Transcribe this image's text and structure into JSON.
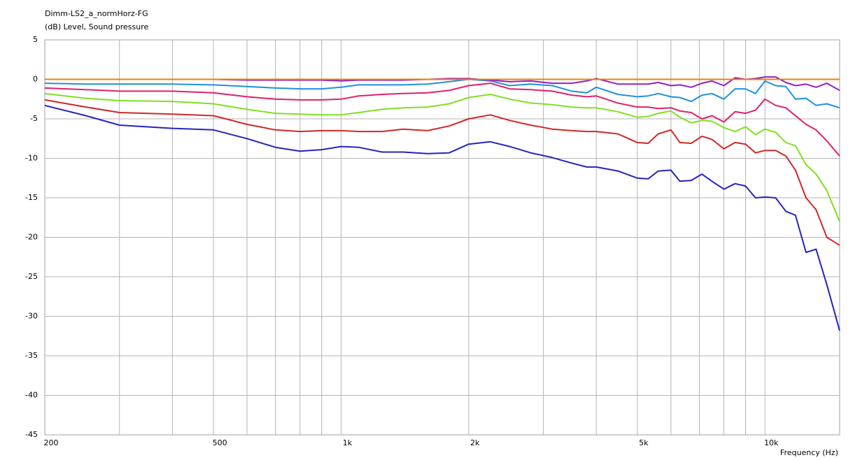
{
  "chart_data": {
    "type": "line",
    "log_x": true,
    "grid": true,
    "title": "Dimm-LS2_a_normHorz-FG",
    "subtitle": "(dB)  Level, Sound pressure",
    "x_label": "Frequency  (Hz)",
    "xlim": [
      200,
      15000
    ],
    "ylim": [
      -45,
      5
    ],
    "xticks": [
      200,
      500,
      {
        "value": 1000,
        "label": "1k"
      },
      {
        "value": 2000,
        "label": "2k"
      },
      {
        "value": 5000,
        "label": "5k"
      },
      {
        "value": 10000,
        "label": "10k"
      }
    ],
    "xminor_ticks": [
      300,
      400,
      600,
      700,
      800,
      900,
      3000,
      4000,
      6000,
      7000,
      8000,
      9000
    ],
    "yticks": [
      5,
      0,
      -5,
      -10,
      -15,
      -20,
      -25,
      -30,
      -35,
      -40,
      -45
    ],
    "x": [
      200,
      250,
      300,
      400,
      500,
      600,
      700,
      800,
      900,
      1000,
      1100,
      1250,
      1400,
      1600,
      1800,
      2000,
      2250,
      2500,
      2800,
      3150,
      3500,
      3800,
      4000,
      4500,
      5000,
      5300,
      5600,
      6000,
      6300,
      6700,
      7100,
      7500,
      8000,
      8500,
      9000,
      9500,
      10000,
      10600,
      11200,
      11800,
      12500,
      13200,
      14000,
      15000
    ],
    "series": [
      {
        "color": "#2424c0",
        "values": [
          -3.3,
          -4.6,
          -5.8,
          -6.2,
          -6.4,
          -7.5,
          -8.6,
          -9.1,
          -8.9,
          -8.5,
          -8.6,
          -9.2,
          -9.2,
          -9.4,
          -9.3,
          -8.2,
          -7.9,
          -8.5,
          -9.3,
          -9.9,
          -10.6,
          -11.1,
          -11.1,
          -11.6,
          -12.5,
          -12.6,
          -11.6,
          -11.5,
          -12.9,
          -12.8,
          -12.0,
          -12.9,
          -13.9,
          -13.2,
          -13.5,
          -15.0,
          -14.9,
          -15.0,
          -16.7,
          -17.2,
          -21.9,
          -21.5,
          -26.0,
          -31.8
        ]
      },
      {
        "color": "#d02828",
        "values": [
          -2.6,
          -3.5,
          -4.2,
          -4.4,
          -4.6,
          -5.7,
          -6.4,
          -6.6,
          -6.5,
          -6.5,
          -6.6,
          -6.6,
          -6.3,
          -6.5,
          -5.9,
          -5.0,
          -4.5,
          -5.2,
          -5.8,
          -6.3,
          -6.5,
          -6.6,
          -6.6,
          -6.9,
          -8.0,
          -8.1,
          -6.9,
          -6.4,
          -8.0,
          -8.1,
          -7.2,
          -7.6,
          -8.8,
          -8.0,
          -8.2,
          -9.3,
          -9.0,
          -9.0,
          -9.7,
          -11.5,
          -15.0,
          -16.5,
          -20.0,
          -21.0
        ]
      },
      {
        "color": "#80e020",
        "values": [
          -1.8,
          -2.4,
          -2.7,
          -2.8,
          -3.1,
          -3.8,
          -4.3,
          -4.4,
          -4.5,
          -4.5,
          -4.2,
          -3.8,
          -3.6,
          -3.5,
          -3.1,
          -2.3,
          -1.9,
          -2.5,
          -3.0,
          -3.2,
          -3.5,
          -3.6,
          -3.6,
          -4.1,
          -4.8,
          -4.7,
          -4.3,
          -4.0,
          -4.8,
          -5.5,
          -5.2,
          -5.3,
          -6.1,
          -6.6,
          -6.0,
          -7.0,
          -6.3,
          -6.7,
          -8.0,
          -8.4,
          -10.8,
          -12.0,
          -14.1,
          -18.0
        ]
      },
      {
        "color": "#e0206a",
        "values": [
          -1.1,
          -1.3,
          -1.5,
          -1.5,
          -1.7,
          -2.2,
          -2.5,
          -2.6,
          -2.6,
          -2.5,
          -2.1,
          -1.9,
          -1.8,
          -1.7,
          -1.4,
          -0.8,
          -0.5,
          -1.2,
          -1.3,
          -1.5,
          -2.0,
          -2.2,
          -2.1,
          -3.0,
          -3.5,
          -3.5,
          -3.7,
          -3.6,
          -4.0,
          -4.2,
          -5.0,
          -4.6,
          -5.4,
          -4.1,
          -4.3,
          -3.9,
          -2.5,
          -3.3,
          -3.6,
          -4.6,
          -5.7,
          -6.4,
          -7.8,
          -9.7
        ]
      },
      {
        "color": "#2090e0",
        "values": [
          -0.5,
          -0.6,
          -0.6,
          -0.6,
          -0.7,
          -0.9,
          -1.1,
          -1.2,
          -1.2,
          -1.0,
          -0.7,
          -0.7,
          -0.7,
          -0.6,
          -0.3,
          0.0,
          -0.2,
          -0.8,
          -0.6,
          -0.8,
          -1.5,
          -1.7,
          -1.0,
          -1.9,
          -2.2,
          -2.1,
          -1.8,
          -2.2,
          -2.3,
          -2.8,
          -2.0,
          -1.8,
          -2.5,
          -1.2,
          -1.2,
          -1.8,
          -0.2,
          -0.8,
          -0.9,
          -2.5,
          -2.4,
          -3.3,
          -3.1,
          -3.6
        ]
      },
      {
        "color": "#9020d0",
        "values": [
          0.0,
          0.0,
          0.0,
          0.0,
          0.0,
          -0.1,
          -0.1,
          -0.1,
          -0.1,
          -0.2,
          -0.1,
          -0.1,
          -0.1,
          0.0,
          0.1,
          0.1,
          -0.1,
          -0.3,
          -0.2,
          -0.5,
          -0.5,
          -0.2,
          0.1,
          -0.6,
          -0.6,
          -0.6,
          -0.4,
          -0.8,
          -0.7,
          -1.0,
          -0.5,
          -0.2,
          -0.8,
          0.2,
          0.0,
          0.1,
          0.3,
          0.3,
          -0.4,
          -0.8,
          -0.6,
          -1.0,
          -0.5,
          -1.4
        ]
      },
      {
        "color": "#f08000",
        "values": [
          0,
          0,
          0,
          0,
          0,
          0,
          0,
          0,
          0,
          0,
          0,
          0,
          0,
          0,
          0,
          0,
          0,
          0,
          0,
          0,
          0,
          0,
          0,
          0,
          0,
          0,
          0,
          0,
          0,
          0,
          0,
          0,
          0,
          0,
          0,
          0,
          0,
          0,
          0,
          0,
          0,
          0,
          0,
          0
        ]
      }
    ]
  }
}
